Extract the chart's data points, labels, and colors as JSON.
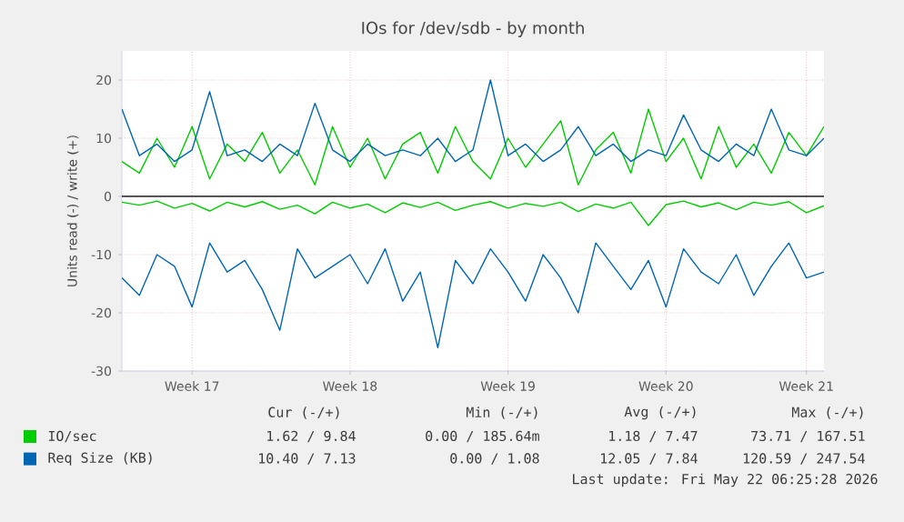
{
  "chart_data": {
    "type": "line",
    "title": "IOs for /dev/sdb - by month",
    "ylabel": "Units read (-) / write (+)",
    "categories": [
      null,
      null,
      null,
      null,
      "Week 17",
      null,
      null,
      null,
      null,
      null,
      null,
      null,
      null,
      "Week 18",
      null,
      null,
      null,
      null,
      null,
      null,
      null,
      null,
      "Week 19",
      null,
      null,
      null,
      null,
      null,
      null,
      null,
      null,
      "Week 20",
      null,
      null,
      null,
      null,
      null,
      null,
      null,
      "Week 21",
      null
    ],
    "ylim": [
      -30,
      25
    ],
    "yticks": [
      -30,
      -20,
      -10,
      0,
      10,
      20
    ],
    "grid": true,
    "legend": "bottom",
    "marker": "none",
    "line_style": "solid",
    "series": [
      {
        "color": "#00cc00",
        "values": [
          -1,
          -1.5,
          -0.8,
          -2,
          -1.2,
          -2.5,
          -1,
          -1.8,
          -0.9,
          -2.2,
          -1.5,
          -3,
          -1,
          -2,
          -1.3,
          -2.8,
          -1.1,
          -1.9,
          -1,
          -2.4,
          -1.5,
          -0.9,
          -2,
          -1.2,
          -1.7,
          -1,
          -2.6,
          -1.3,
          -2,
          -1,
          -5,
          -1.4,
          -0.8,
          -1.8,
          -1.1,
          -2.3,
          -1,
          -1.5,
          -0.9,
          -2.8,
          -1.6
        ]
      },
      {
        "name": "IO/sec",
        "color": "#00cc00",
        "values": [
          6,
          4,
          10,
          5,
          12,
          3,
          9,
          6,
          11,
          4,
          8,
          2,
          12,
          5,
          10,
          3,
          9,
          11,
          4,
          12,
          6,
          3,
          10,
          5,
          9,
          13,
          2,
          8,
          11,
          4,
          15,
          6,
          10,
          3,
          12,
          5,
          9,
          4,
          11,
          7,
          12
        ]
      },
      {
        "color": "#0066b3",
        "values": [
          -14,
          -17,
          -10,
          -12,
          -19,
          -8,
          -13,
          -11,
          -16,
          -23,
          -9,
          -14,
          -12,
          -10,
          -15,
          -9,
          -18,
          -13,
          -26,
          -11,
          -15,
          -9,
          -13,
          -18,
          -10,
          -14,
          -20,
          -8,
          -12,
          -16,
          -11,
          -19,
          -9,
          -13,
          -15,
          -10,
          -17,
          -12,
          -8,
          -14,
          -13
        ]
      },
      {
        "name": "Req Size (KB)",
        "color": "#0066b3",
        "values": [
          15,
          7,
          9,
          6,
          8,
          18,
          7,
          8,
          6,
          9,
          7,
          16,
          8,
          6,
          9,
          7,
          8,
          7,
          10,
          6,
          8,
          20,
          7,
          9,
          6,
          8,
          12,
          7,
          9,
          6,
          8,
          7,
          14,
          8,
          6,
          9,
          7,
          15,
          8,
          7,
          10
        ]
      }
    ],
    "ref_lines": [
      {
        "axis": "y",
        "value": 0,
        "color": "#000000"
      }
    ],
    "annotations": [
      "Cur (-/+)",
      "Min (-/+)",
      "Avg (-/+)",
      "Max (-/+)",
      "1.62 / 9.84",
      "0.00 / 185.64m",
      "1.18 / 7.47",
      "73.71 / 167.51",
      "10.40 / 7.13",
      "0.00 / 1.08",
      "12.05 / 7.84",
      "120.59 / 247.54",
      "Last update: Fri May 22 06:25:28 2026"
    ]
  }
}
